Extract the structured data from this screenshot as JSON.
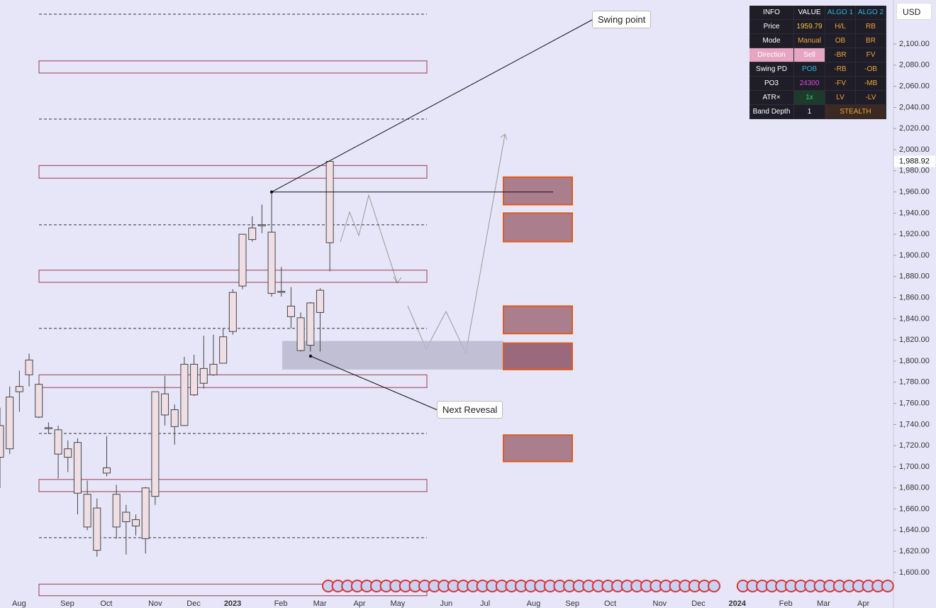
{
  "chart_data": {
    "type": "candlestick",
    "currency": "USD",
    "ylim": [
      1566.4,
      2141.6
    ],
    "xlim": [
      0,
      92.1
    ],
    "yticks": [
      {
        "value": 1600,
        "label": "1,600.00"
      },
      {
        "value": 1620,
        "label": "1,620.00"
      },
      {
        "value": 1640,
        "label": "1,640.00"
      },
      {
        "value": 1660,
        "label": "1,660.00"
      },
      {
        "value": 1680,
        "label": "1,680.00"
      },
      {
        "value": 1700,
        "label": "1,700.00"
      },
      {
        "value": 1720,
        "label": "1,720.00"
      },
      {
        "value": 1740,
        "label": "1,740.00"
      },
      {
        "value": 1760,
        "label": "1,760.00"
      },
      {
        "value": 1780,
        "label": "1,780.00"
      },
      {
        "value": 1800,
        "label": "1,800.00"
      },
      {
        "value": 1820,
        "label": "1,820.00"
      },
      {
        "value": 1840,
        "label": "1,840.00"
      },
      {
        "value": 1860,
        "label": "1,860.00"
      },
      {
        "value": 1880,
        "label": "1,880.00"
      },
      {
        "value": 1900,
        "label": "1,900.00"
      },
      {
        "value": 1920,
        "label": "1,920.00"
      },
      {
        "value": 1940,
        "label": "1,940.00"
      },
      {
        "value": 1960,
        "label": "1,960.00"
      },
      {
        "value": 1980,
        "label": "1,980.00"
      },
      {
        "value": 2000,
        "label": "2,000.00"
      },
      {
        "value": 2020,
        "label": "2,020.00"
      },
      {
        "value": 2040,
        "label": "2,040.00"
      },
      {
        "value": 2060,
        "label": "2,060.00"
      },
      {
        "value": 2080,
        "label": "2,080.00"
      },
      {
        "value": 2100,
        "label": "2,100.00"
      }
    ],
    "xticks": [
      {
        "value": 1.97,
        "label": "Aug"
      },
      {
        "value": 6.94,
        "label": "Sep"
      },
      {
        "value": 10.96,
        "label": "Oct"
      },
      {
        "value": 16.0,
        "label": "Nov"
      },
      {
        "value": 19.96,
        "label": "Dec"
      },
      {
        "value": 23.98,
        "label": "2023"
      },
      {
        "value": 28.95,
        "label": "Feb"
      },
      {
        "value": 32.97,
        "label": "Mar"
      },
      {
        "value": 37.06,
        "label": "Apr"
      },
      {
        "value": 41.0,
        "label": "May"
      },
      {
        "value": 46.0,
        "label": "Jun"
      },
      {
        "value": 50.0,
        "label": "Jul"
      },
      {
        "value": 55.0,
        "label": "Aug"
      },
      {
        "value": 59.0,
        "label": "Sep"
      },
      {
        "value": 62.9,
        "label": "Oct"
      },
      {
        "value": 68.0,
        "label": "Nov"
      },
      {
        "value": 72.0,
        "label": "Dec"
      },
      {
        "value": 76.0,
        "label": "2024"
      },
      {
        "value": 81.0,
        "label": "Feb"
      },
      {
        "value": 84.9,
        "label": "Mar"
      },
      {
        "value": 89.0,
        "label": "Apr"
      }
    ],
    "candles": {
      "color": "#efdfe4",
      "x": [
        0,
        1,
        2,
        3,
        4,
        5,
        6,
        7,
        8,
        9,
        10,
        11,
        12,
        13,
        14,
        15,
        16,
        17,
        18,
        19,
        20,
        21,
        22,
        23,
        24,
        25,
        26,
        27,
        28,
        29,
        30,
        31,
        32,
        33,
        34
      ],
      "open": [
        1709,
        1717,
        1771,
        1787,
        1778,
        1737,
        1735,
        1717,
        1723,
        1674,
        1661,
        1694,
        1674,
        1657,
        1650,
        1632,
        1672,
        1769,
        1754,
        1739,
        1768,
        1779,
        1787,
        1798,
        1828,
        1871,
        1915,
        1928,
        1922,
        1865,
        1852,
        1841,
        1815,
        1846,
        1912
      ],
      "high": [
        1756,
        1776,
        1791,
        1807,
        1779,
        1742,
        1739,
        1725,
        1727,
        1687,
        1670,
        1729,
        1683,
        1664,
        1655,
        1681,
        1771,
        1786,
        1759,
        1804,
        1806,
        1824,
        1825,
        1831,
        1868,
        1920,
        1937,
        1948,
        1960,
        1889,
        1870,
        1846,
        1856,
        1869,
        1989
      ],
      "low": [
        1680,
        1712,
        1752,
        1776,
        1746,
        1731,
        1689,
        1695,
        1655,
        1640,
        1615,
        1691,
        1632,
        1617,
        1635,
        1618,
        1664,
        1739,
        1721,
        1739,
        1767,
        1774,
        1786,
        1798,
        1825,
        1868,
        1913,
        1921,
        1861,
        1861,
        1831,
        1809,
        1809,
        1809,
        1885
      ],
      "close": [
        1739,
        1766,
        1776,
        1801,
        1747,
        1736,
        1712,
        1709,
        1675,
        1643,
        1621,
        1699,
        1643,
        1648,
        1644,
        1680,
        1771,
        1749,
        1738,
        1797,
        1797,
        1793,
        1797,
        1823,
        1865,
        1920,
        1926,
        1929,
        1864,
        1866,
        1842,
        1810,
        1855,
        1867,
        1988.92
      ]
    },
    "last_price": {
      "value": 1988.92,
      "label": "1,988.92"
    },
    "levels": [
      2128.2,
      2028.9,
      1928.9,
      1830.9,
      1731.5,
      1632.9
    ],
    "zones": [
      [
        2084,
        2072.5
      ],
      [
        1985,
        1973
      ],
      [
        1886,
        1874.5
      ],
      [
        1787,
        1775
      ],
      [
        1688,
        1676.5
      ],
      [
        1589,
        1578
      ]
    ],
    "order_blocks": [
      [
        1974,
        1948
      ],
      [
        1940,
        1913
      ],
      [
        1852,
        1826
      ],
      [
        1817,
        1792
      ],
      [
        1730,
        1705
      ]
    ],
    "range_box": [
      1819,
      1792
    ],
    "annotations": [
      {
        "text": "Swing point"
      },
      {
        "text": "Next Revesal"
      }
    ],
    "info_table": {
      "header": [
        "INFO",
        "VALUE",
        "ALGO 1",
        "ALGO 2"
      ],
      "rows": [
        [
          "Price",
          "1959.79",
          "H/L",
          "RB"
        ],
        [
          "Mode",
          "Manual",
          "OB",
          "BR"
        ],
        [
          "Direction",
          "Sell",
          "-BR",
          "FV"
        ],
        [
          "Swing PD",
          "POB",
          "-RB",
          "-OB"
        ],
        [
          "PO3",
          "24300",
          "-FV",
          "-MB"
        ],
        [
          "ATR×",
          "1x",
          "LV",
          "-LV"
        ],
        [
          "Band Depth",
          "1",
          "STEALTH"
        ]
      ]
    }
  }
}
